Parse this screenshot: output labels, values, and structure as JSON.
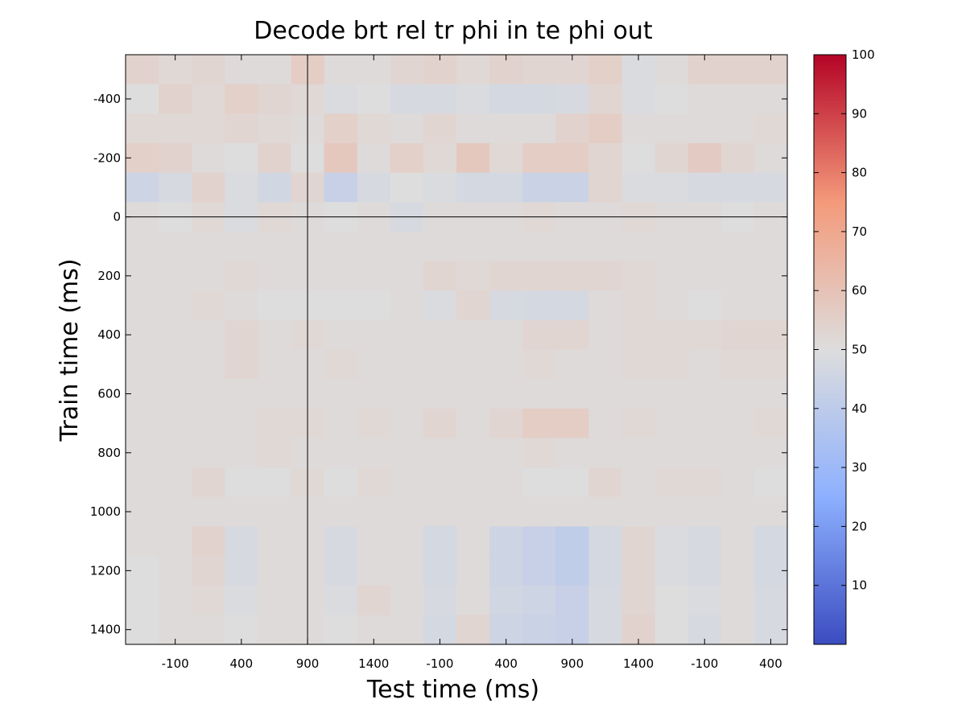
{
  "chart_data": {
    "type": "heatmap",
    "title": "Decode brt rel tr phi in te phi out",
    "xlabel": "Test time (ms)",
    "ylabel": "Train time (ms)",
    "x_tick_labels": [
      "-100",
      "400",
      "900",
      "1400",
      "-100",
      "400",
      "900",
      "1400",
      "-100",
      "400"
    ],
    "y_tick_labels": [
      "-400",
      "-200",
      "0",
      "200",
      "400",
      "600",
      "800",
      "1000",
      "1200",
      "1400"
    ],
    "y_ticks": [
      -400,
      -200,
      0,
      200,
      400,
      600,
      800,
      1000,
      1200,
      1400
    ],
    "ylim": [
      -550,
      1450
    ],
    "color_range": [
      0,
      100
    ],
    "colorbar_ticks": [
      10,
      20,
      30,
      40,
      50,
      60,
      70,
      80,
      90,
      100
    ],
    "colormap": "blue-white-red",
    "colormap_colors": [
      "#3b4cc0",
      "#dddddd",
      "#b40426"
    ],
    "grid": false,
    "reference_lines": [
      "x at test time 900 (first)",
      "y at train time 0"
    ],
    "rows_train_time_centers": [
      -500,
      -400,
      -300,
      -200,
      -100,
      0,
      100,
      200,
      300,
      400,
      500,
      600,
      700,
      800,
      900,
      1000,
      1100,
      1200,
      1300,
      1400
    ],
    "values": [
      [
        54,
        52,
        53,
        51,
        51,
        56,
        51,
        51,
        53,
        54,
        52,
        54,
        53,
        53,
        55,
        49,
        51,
        54,
        54,
        54
      ],
      [
        50,
        54,
        52,
        55,
        53,
        52,
        49,
        50,
        48,
        48,
        49,
        47,
        47,
        48,
        53,
        49,
        50,
        51,
        51,
        51
      ],
      [
        52,
        52,
        52,
        53,
        52,
        51,
        55,
        52,
        51,
        53,
        51,
        51,
        51,
        54,
        56,
        51,
        51,
        51,
        51,
        52
      ],
      [
        55,
        54,
        51,
        50,
        54,
        50,
        58,
        51,
        55,
        52,
        58,
        52,
        56,
        56,
        53,
        50,
        53,
        57,
        53,
        51
      ],
      [
        45,
        48,
        54,
        49,
        46,
        53,
        43,
        48,
        50,
        49,
        47,
        47,
        44,
        44,
        53,
        49,
        49,
        48,
        48,
        48
      ],
      [
        51,
        50,
        52,
        49,
        52,
        51,
        50,
        51,
        48,
        51,
        51,
        51,
        52,
        51,
        51,
        52,
        51,
        51,
        50,
        51
      ],
      [
        51,
        51,
        51,
        51,
        51,
        51,
        51,
        51,
        51,
        51,
        51,
        51,
        51,
        51,
        51,
        51,
        51,
        51,
        51,
        51
      ],
      [
        51,
        51,
        51,
        52,
        51,
        51,
        51,
        51,
        51,
        53,
        52,
        53,
        53,
        53,
        53,
        52,
        51,
        51,
        51,
        51
      ],
      [
        51,
        51,
        52,
        51,
        50,
        50,
        50,
        50,
        51,
        49,
        53,
        48,
        47,
        47,
        51,
        52,
        51,
        50,
        51,
        51
      ],
      [
        51,
        51,
        51,
        53,
        51,
        52,
        51,
        51,
        51,
        51,
        51,
        51,
        53,
        53,
        51,
        52,
        52,
        52,
        53,
        53
      ],
      [
        51,
        51,
        51,
        53,
        51,
        51,
        52,
        51,
        51,
        51,
        51,
        51,
        52,
        51,
        51,
        52,
        52,
        51,
        52,
        52
      ],
      [
        51,
        51,
        51,
        51,
        51,
        51,
        51,
        51,
        51,
        51,
        51,
        51,
        51,
        51,
        51,
        51,
        51,
        51,
        51,
        51
      ],
      [
        51,
        51,
        51,
        51,
        52,
        52,
        51,
        52,
        51,
        53,
        51,
        53,
        56,
        56,
        51,
        52,
        51,
        51,
        51,
        52
      ],
      [
        51,
        51,
        51,
        51,
        52,
        51,
        51,
        51,
        51,
        51,
        51,
        51,
        52,
        51,
        51,
        51,
        51,
        51,
        51,
        51
      ],
      [
        51,
        51,
        53,
        50,
        50,
        52,
        50,
        52,
        51,
        51,
        51,
        51,
        50,
        50,
        53,
        51,
        52,
        52,
        51,
        50
      ],
      [
        51,
        51,
        51,
        51,
        51,
        51,
        51,
        51,
        51,
        51,
        51,
        51,
        51,
        51,
        51,
        51,
        51,
        51,
        51,
        51
      ],
      [
        51,
        51,
        54,
        48,
        51,
        51,
        48,
        51,
        51,
        47,
        51,
        45,
        43,
        41,
        47,
        53,
        49,
        48,
        51,
        47
      ],
      [
        50,
        51,
        53,
        48,
        51,
        51,
        48,
        51,
        51,
        47,
        51,
        45,
        43,
        41,
        47,
        53,
        49,
        48,
        51,
        47
      ],
      [
        50,
        51,
        52,
        49,
        51,
        51,
        49,
        53,
        51,
        48,
        51,
        46,
        45,
        43,
        48,
        53,
        50,
        49,
        51,
        48
      ],
      [
        50,
        51,
        51,
        50,
        51,
        51,
        50,
        51,
        51,
        47,
        53,
        45,
        44,
        43,
        48,
        54,
        50,
        48,
        51,
        48
      ]
    ]
  }
}
